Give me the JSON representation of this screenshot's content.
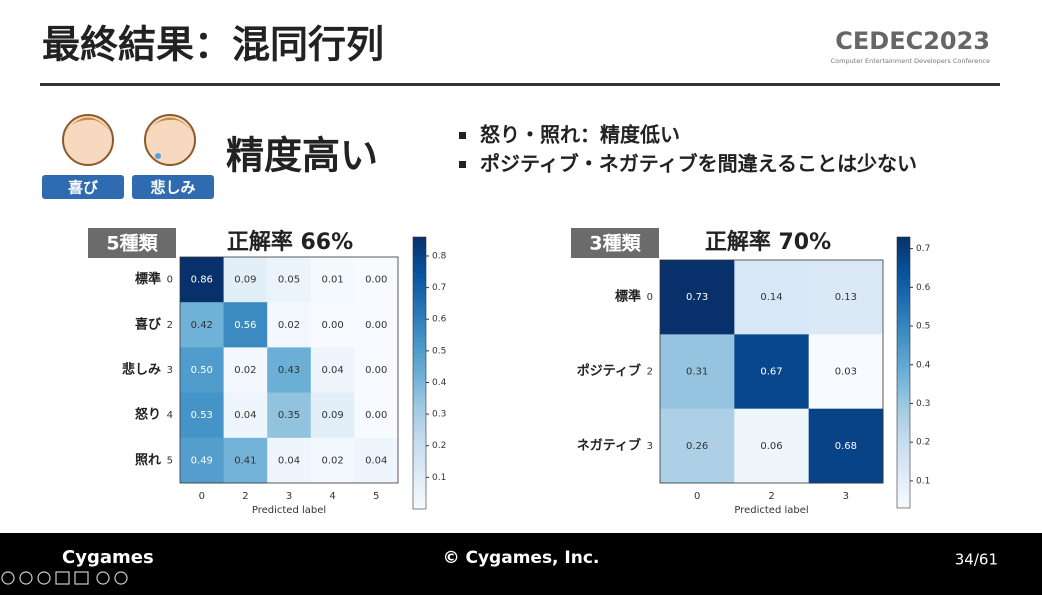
{
  "slide": {
    "title": "最終結果：混同行列",
    "logo": "CEDEC2023",
    "logo_sub": "Computer Entertainment Developers Conference",
    "badges": [
      "喜び",
      "悲しみ"
    ],
    "heading": "精度高い",
    "bullets": [
      "怒り・照れ：精度低い",
      "ポジティブ・ネガティブを間違えることは少ない"
    ],
    "footer": {
      "brand": "Cygames",
      "copyright": "© Cygames, Inc.",
      "page": "34/61"
    }
  },
  "chart_data": [
    {
      "type": "heatmap",
      "tag": "5種類",
      "title": "正解率 66%",
      "xlabel": "Predicted label",
      "row_names": [
        "標準",
        "喜び",
        "悲しみ",
        "怒り",
        "照れ"
      ],
      "row_ids": [
        "0",
        "2",
        "3",
        "4",
        "5"
      ],
      "categories": [
        "0",
        "2",
        "3",
        "4",
        "5"
      ],
      "values": [
        [
          0.86,
          0.09,
          0.05,
          0.01,
          0.0
        ],
        [
          0.42,
          0.56,
          0.02,
          0.0,
          0.0
        ],
        [
          0.5,
          0.02,
          0.43,
          0.04,
          0.0
        ],
        [
          0.53,
          0.04,
          0.35,
          0.09,
          0.0
        ],
        [
          0.49,
          0.41,
          0.04,
          0.02,
          0.04
        ]
      ],
      "value_labels": [
        [
          "0.86",
          "0.09",
          "0.05",
          "0.01",
          "0.00"
        ],
        [
          "0.42",
          "0.56",
          "0.02",
          "0.00",
          "0.00"
        ],
        [
          "0.50",
          "0.02",
          "0.43",
          "0.04",
          "0.00"
        ],
        [
          "0.53",
          "0.04",
          "0.35",
          "0.09",
          "0.00"
        ],
        [
          "0.49",
          "0.41",
          "0.04",
          "0.02",
          "0.04"
        ]
      ],
      "clim": [
        0,
        0.86
      ],
      "cticks": [
        0.1,
        0.2,
        0.3,
        0.4,
        0.5,
        0.6,
        0.7,
        0.8
      ],
      "colormap": "Blues"
    },
    {
      "type": "heatmap",
      "tag": "3種類",
      "title": "正解率 70%",
      "xlabel": "Predicted label",
      "row_names": [
        "標準",
        "ポジティブ",
        "ネガティブ"
      ],
      "row_ids": [
        "0",
        "2",
        "3"
      ],
      "categories": [
        "0",
        "2",
        "3"
      ],
      "values": [
        [
          0.73,
          0.14,
          0.13
        ],
        [
          0.31,
          0.67,
          0.03
        ],
        [
          0.26,
          0.06,
          0.68
        ]
      ],
      "value_labels": [
        [
          "0.73",
          "0.14",
          "0.13"
        ],
        [
          "0.31",
          "0.67",
          "0.03"
        ],
        [
          "0.26",
          "0.06",
          "0.68"
        ]
      ],
      "clim": [
        0.03,
        0.73
      ],
      "cticks": [
        0.1,
        0.2,
        0.3,
        0.4,
        0.5,
        0.6,
        0.7
      ],
      "colormap": "Blues"
    }
  ]
}
